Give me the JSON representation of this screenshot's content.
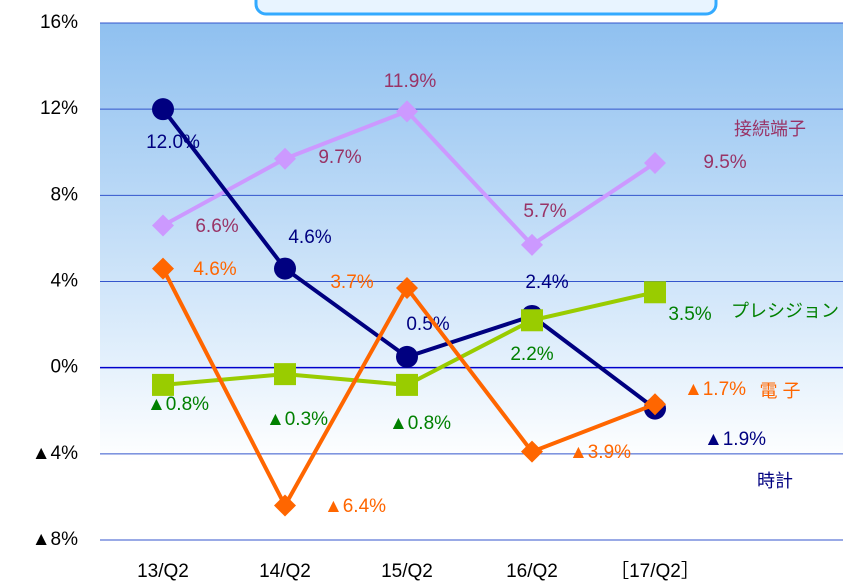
{
  "chart_data": {
    "type": "line",
    "categories": [
      "13/Q2",
      "14/Q2",
      "15/Q2",
      "16/Q2",
      "［17/Q2］"
    ],
    "series": [
      {
        "name": "時計",
        "color": "#000080",
        "label_color": "#000080",
        "marker": "circle",
        "values": [
          12.0,
          4.6,
          0.5,
          2.4,
          -1.9
        ],
        "value_labels": [
          "12.0%",
          "4.6%",
          "0.5%",
          "2.4%",
          "▲1.9%"
        ]
      },
      {
        "name": "接続端子",
        "color": "#cc99ff",
        "label_color": "#993366",
        "marker": "diamond",
        "values": [
          6.6,
          9.7,
          11.9,
          5.7,
          9.5
        ],
        "value_labels": [
          "6.6%",
          "9.7%",
          "11.9%",
          "5.7%",
          "9.5%"
        ]
      },
      {
        "name": "プレシジョン",
        "color": "#99cc00",
        "label_color": "#008000",
        "marker": "square",
        "values": [
          -0.8,
          -0.3,
          -0.8,
          2.2,
          3.5
        ],
        "value_labels": [
          "▲0.8%",
          "▲0.3%",
          "▲0.8%",
          "2.2%",
          "3.5%"
        ]
      },
      {
        "name": "電 子",
        "color": "#ff6600",
        "label_color": "#ff6600",
        "marker": "diamond",
        "values": [
          4.6,
          -6.4,
          3.7,
          -3.9,
          -1.7
        ],
        "value_labels": [
          "4.6%",
          "▲6.4%",
          "3.7%",
          "▲3.9%",
          "▲1.7%"
        ]
      }
    ],
    "ylim": [
      -8,
      16
    ],
    "yticks": [
      {
        "value": -8,
        "label": "▲8%"
      },
      {
        "value": -4,
        "label": "▲4%"
      },
      {
        "value": 0,
        "label": "0%"
      },
      {
        "value": 4,
        "label": "4%"
      },
      {
        "value": 8,
        "label": "8%"
      },
      {
        "value": 12,
        "label": "12%"
      },
      {
        "value": 16,
        "label": "16%"
      }
    ],
    "grid": true
  }
}
